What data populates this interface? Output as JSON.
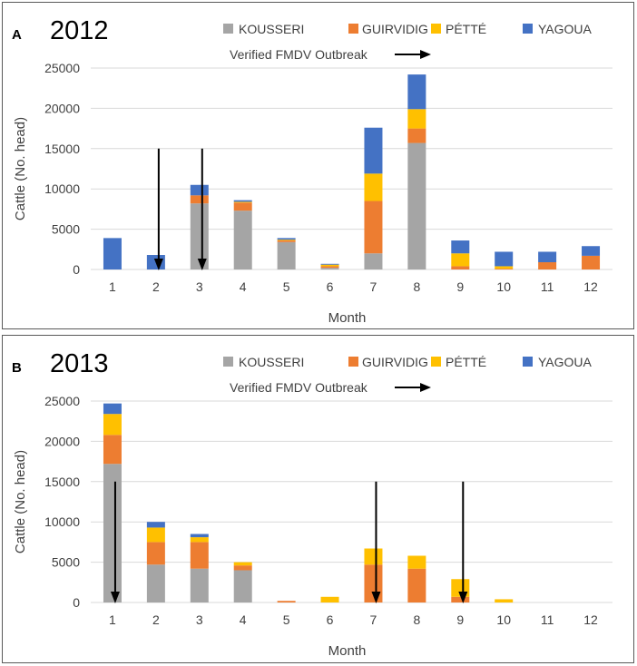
{
  "chart_data": [
    {
      "panel": "A",
      "title": "2012",
      "type": "bar",
      "stacked": true,
      "xlabel": "Month",
      "ylabel": "Cattle (No. head)",
      "ylim": [
        0,
        25000
      ],
      "yticks": [
        0,
        5000,
        10000,
        15000,
        20000,
        25000
      ],
      "categories": [
        "1",
        "2",
        "3",
        "4",
        "5",
        "6",
        "7",
        "8",
        "9",
        "10",
        "11",
        "12"
      ],
      "series": [
        {
          "name": "KOUSSERI",
          "color": "#a5a5a5",
          "values": [
            0,
            0,
            8200,
            7300,
            3400,
            200,
            2000,
            15700,
            0,
            0,
            0,
            0
          ]
        },
        {
          "name": "GUIRVIDIG",
          "color": "#ed7d31",
          "values": [
            0,
            0,
            1000,
            1000,
            200,
            200,
            6500,
            1800,
            400,
            100,
            900,
            1700
          ]
        },
        {
          "name": "PÉTTÉ",
          "color": "#ffc000",
          "values": [
            0,
            0,
            0,
            100,
            100,
            200,
            3400,
            2400,
            1600,
            300,
            0,
            0
          ]
        },
        {
          "name": "YAGOUA",
          "color": "#4472c4",
          "values": [
            3900,
            1800,
            1300,
            200,
            200,
            100,
            5700,
            4300,
            1600,
            1800,
            1300,
            1200
          ]
        }
      ],
      "annotation": "Verified FMDV Outbreak",
      "outbreak_months": [
        2,
        3
      ]
    },
    {
      "panel": "B",
      "title": "2013",
      "type": "bar",
      "stacked": true,
      "xlabel": "Month",
      "ylabel": "Cattle (No. head)",
      "ylim": [
        0,
        25000
      ],
      "yticks": [
        0,
        5000,
        10000,
        15000,
        20000,
        25000
      ],
      "categories": [
        "1",
        "2",
        "3",
        "4",
        "5",
        "6",
        "7",
        "8",
        "9",
        "10",
        "11",
        "12"
      ],
      "series": [
        {
          "name": "KOUSSERI",
          "color": "#a5a5a5",
          "values": [
            17200,
            4700,
            4200,
            4000,
            0,
            0,
            0,
            0,
            0,
            0,
            0,
            0
          ]
        },
        {
          "name": "GUIRVIDIG",
          "color": "#ed7d31",
          "values": [
            3600,
            2800,
            3300,
            600,
            200,
            0,
            4700,
            4200,
            700,
            0,
            0,
            0
          ]
        },
        {
          "name": "PÉTTÉ",
          "color": "#ffc000",
          "values": [
            2600,
            1800,
            600,
            400,
            0,
            700,
            2000,
            1600,
            2200,
            400,
            0,
            0
          ]
        },
        {
          "name": "YAGOUA",
          "color": "#4472c4",
          "values": [
            1300,
            700,
            400,
            0,
            0,
            0,
            0,
            0,
            0,
            0,
            0,
            0
          ]
        }
      ],
      "annotation": "Verified FMDV Outbreak",
      "outbreak_months": [
        1,
        7,
        9
      ]
    }
  ]
}
